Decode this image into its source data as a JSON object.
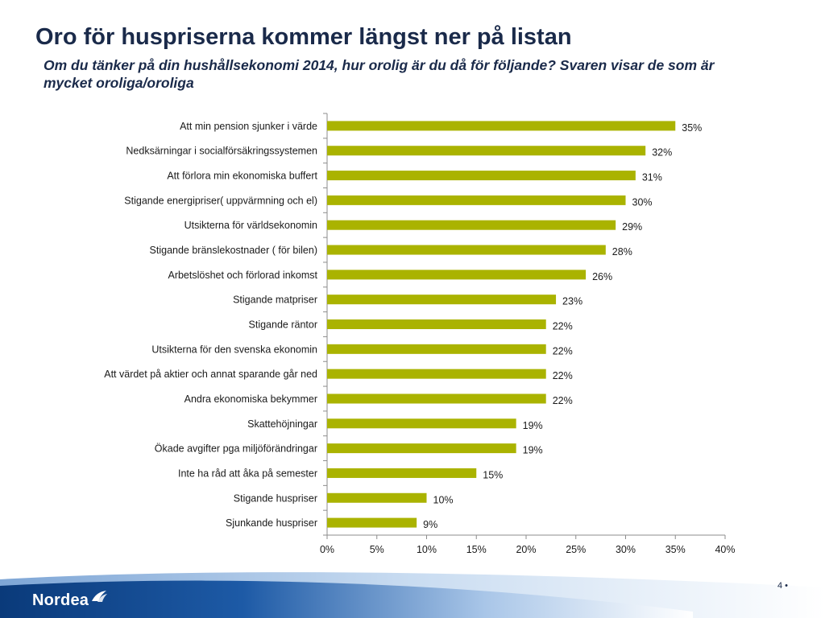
{
  "slide": {
    "title": "Oro för huspriserna kommer längst ner på listan",
    "subtitle": "Om du tänker på din hushållsekonomi 2014, hur orolig är du då för följande? Svaren visar de som är mycket oroliga/oroliga",
    "page_number": "4 •",
    "logo_text": "Nordea"
  },
  "colors": {
    "bar": "#aab300",
    "axis": "#8c8c8c",
    "text": "#1a1a1a",
    "band_dark": "#0a3a7a",
    "band_light": "#7ea6d6"
  },
  "chart_data": {
    "type": "bar",
    "orientation": "horizontal",
    "categories": [
      "Att min pension sjunker i värde",
      "Nedksärningar i socialförsäkringssystemen",
      "Att förlora min ekonomiska buffert",
      "Stigande energipriser( uppvärmning och el)",
      "Utsikterna för världsekonomin",
      "Stigande bränslekostnader ( för bilen)",
      "Arbetslöshet och förlorad inkomst",
      "Stigande matpriser",
      "Stigande räntor",
      "Utsikterna för den svenska ekonomin",
      "Att värdet på aktier och annat sparande går ned",
      "Andra ekonomiska bekymmer",
      "Skattehöjningar",
      "Ökade avgifter pga miljöförändringar",
      "Inte ha råd att åka på semester",
      "Stigande huspriser",
      "Sjunkande huspriser"
    ],
    "values": [
      35,
      32,
      31,
      30,
      29,
      28,
      26,
      23,
      22,
      22,
      22,
      22,
      19,
      19,
      15,
      10,
      9
    ],
    "data_labels": [
      "35%",
      "32%",
      "31%",
      "30%",
      "29%",
      "28%",
      "26%",
      "23%",
      "22%",
      "22%",
      "22%",
      "22%",
      "19%",
      "19%",
      "15%",
      "10%",
      "9%"
    ],
    "xlim": [
      0,
      40
    ],
    "xticks": [
      0,
      5,
      10,
      15,
      20,
      25,
      30,
      35,
      40
    ],
    "xtick_labels": [
      "0%",
      "5%",
      "10%",
      "15%",
      "20%",
      "25%",
      "30%",
      "35%",
      "40%"
    ],
    "grid": false,
    "legend": "none"
  }
}
